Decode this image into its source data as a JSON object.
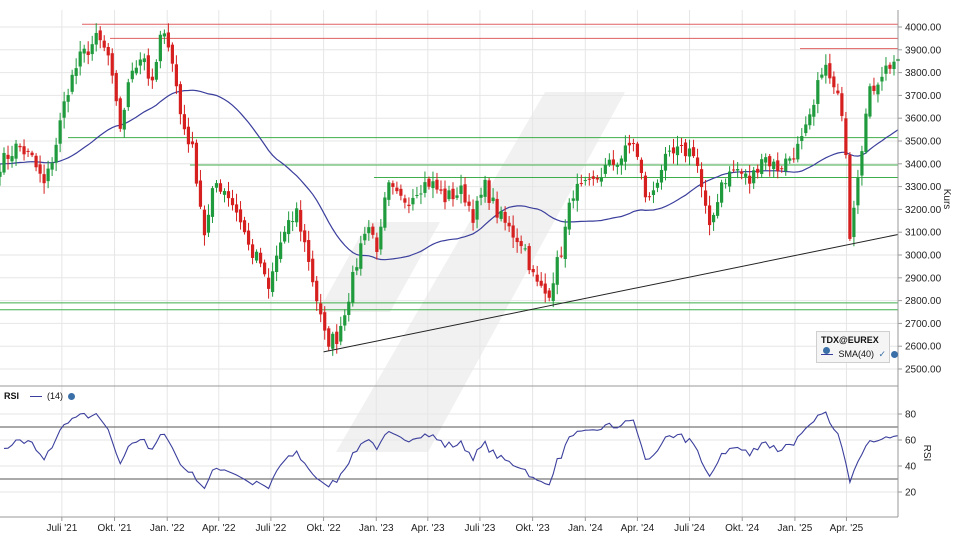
{
  "chart_data": [
    {
      "type": "candlestick",
      "instrument": "TDX@EUREX",
      "ylabel": "Kurs",
      "ylim": [
        2450,
        4080
      ],
      "y_ticks": [
        2500,
        2600,
        2700,
        2800,
        2900,
        3000,
        3100,
        3200,
        3300,
        3400,
        3500,
        3600,
        3700,
        3800,
        3900,
        4000
      ],
      "y_tick_labels": [
        "2500.00",
        "2600.00",
        "2700.00",
        "2800.00",
        "2900.00",
        "3000.00",
        "3100.00",
        "3200.00",
        "3300.00",
        "3400.00",
        "3500.00",
        "3600.00",
        "3700.00",
        "3800.00",
        "3900.00",
        "4000.00"
      ],
      "x_ticks": [
        "2021-07-01",
        "2021-10-01",
        "2022-01-01",
        "2022-04-01",
        "2022-07-01",
        "2022-10-01",
        "2023-01-01",
        "2023-04-01",
        "2023-07-01",
        "2023-10-01",
        "2024-01-01",
        "2024-04-01",
        "2024-07-01",
        "2024-10-01",
        "2025-01-01",
        "2025-04-01"
      ],
      "x_tick_labels": [
        "Juli '21",
        "Okt. '21",
        "Jan. '22",
        "Apr. '22",
        "Juli '22",
        "Okt. '22",
        "Jan. '23",
        "Apr. '23",
        "Juli '23",
        "Okt. '23",
        "Jan. '24",
        "Apr. '24",
        "Juli '24",
        "Okt. '24",
        "Jan. '25",
        "Apr. '25"
      ],
      "x_range": [
        "2021-03-15",
        "2025-06-30"
      ],
      "grid": true,
      "legend_placement": "bottom-right",
      "price_anchors": {
        "date": [
          "2021-03-15",
          "2021-04-15",
          "2021-05-10",
          "2021-06-01",
          "2021-06-20",
          "2021-07-10",
          "2021-08-01",
          "2021-09-01",
          "2021-09-20",
          "2021-10-10",
          "2021-11-01",
          "2021-11-20",
          "2021-12-05",
          "2021-12-20",
          "2022-01-05",
          "2022-01-25",
          "2022-02-15",
          "2022-03-08",
          "2022-03-25",
          "2022-04-15",
          "2022-05-10",
          "2022-05-25",
          "2022-06-15",
          "2022-06-25",
          "2022-07-15",
          "2022-08-15",
          "2022-09-05",
          "2022-09-25",
          "2022-10-05",
          "2022-10-25",
          "2022-11-20",
          "2022-12-15",
          "2023-01-05",
          "2023-01-20",
          "2023-02-10",
          "2023-03-01",
          "2023-03-15",
          "2023-04-05",
          "2023-05-01",
          "2023-06-01",
          "2023-06-20",
          "2023-07-10",
          "2023-08-01",
          "2023-08-25",
          "2023-09-15",
          "2023-10-05",
          "2023-10-27",
          "2023-11-20",
          "2023-12-10",
          "2024-01-10",
          "2024-02-05",
          "2024-03-01",
          "2024-03-25",
          "2024-04-19",
          "2024-05-15",
          "2024-06-10",
          "2024-07-10",
          "2024-08-05",
          "2024-08-25",
          "2024-09-20",
          "2024-10-15",
          "2024-11-05",
          "2024-12-01",
          "2024-12-20",
          "2025-01-10",
          "2025-02-01",
          "2025-02-19",
          "2025-03-10",
          "2025-03-28",
          "2025-04-07",
          "2025-04-20",
          "2025-05-10",
          "2025-06-01",
          "2025-06-27"
        ],
        "close": [
          3400,
          3480,
          3420,
          3300,
          3480,
          3720,
          3860,
          3950,
          3870,
          3550,
          3820,
          3890,
          3720,
          3950,
          3940,
          3600,
          3450,
          3080,
          3320,
          3280,
          3150,
          3020,
          2960,
          2820,
          3040,
          3190,
          2980,
          2730,
          2620,
          2640,
          2880,
          3150,
          3020,
          3300,
          3240,
          3250,
          3300,
          3320,
          3250,
          3280,
          3170,
          3300,
          3180,
          3100,
          3050,
          2880,
          2820,
          3020,
          3280,
          3300,
          3380,
          3420,
          3500,
          3220,
          3400,
          3450,
          3460,
          3100,
          3320,
          3380,
          3320,
          3440,
          3380,
          3420,
          3480,
          3620,
          3850,
          3720,
          3620,
          3100,
          3350,
          3700,
          3800,
          3860
        ]
      },
      "series": [
        {
          "name": "SMA(40)",
          "type": "line",
          "color": "#3b3f9c",
          "period": 40
        }
      ],
      "horizontal_lines": {
        "red": [
          4012,
          3950,
          3905
        ],
        "green": [
          3515,
          3395,
          3340,
          2790,
          2760
        ]
      },
      "trendline": {
        "x": [
          "2022-10-01",
          "2025-06-30"
        ],
        "y": [
          2575,
          3090
        ]
      },
      "colors": {
        "up": "#1f9a3c",
        "down": "#d61f1f",
        "sma": "#3b3f9c",
        "support": "#3fae4a",
        "resistance": "#e06060"
      }
    },
    {
      "type": "line",
      "series": [
        {
          "name": "RSI",
          "period": "(14)",
          "color": "#3b3f9c"
        }
      ],
      "ylabel": "RSI",
      "ylim": [
        10,
        90
      ],
      "y_ticks": [
        20,
        40,
        60,
        80
      ],
      "y_tick_labels": [
        "20",
        "40",
        "60",
        "80"
      ],
      "horizontal_lines": [
        70,
        30
      ],
      "legend_placement": "top-left"
    }
  ],
  "ui": {
    "legend_title": "TDX@EUREX",
    "sma_label": "SMA(40)",
    "rsi_title": "RSI",
    "rsi_period": "(14)",
    "axis_title_price": "Kurs",
    "axis_title_rsi": "RSI"
  }
}
